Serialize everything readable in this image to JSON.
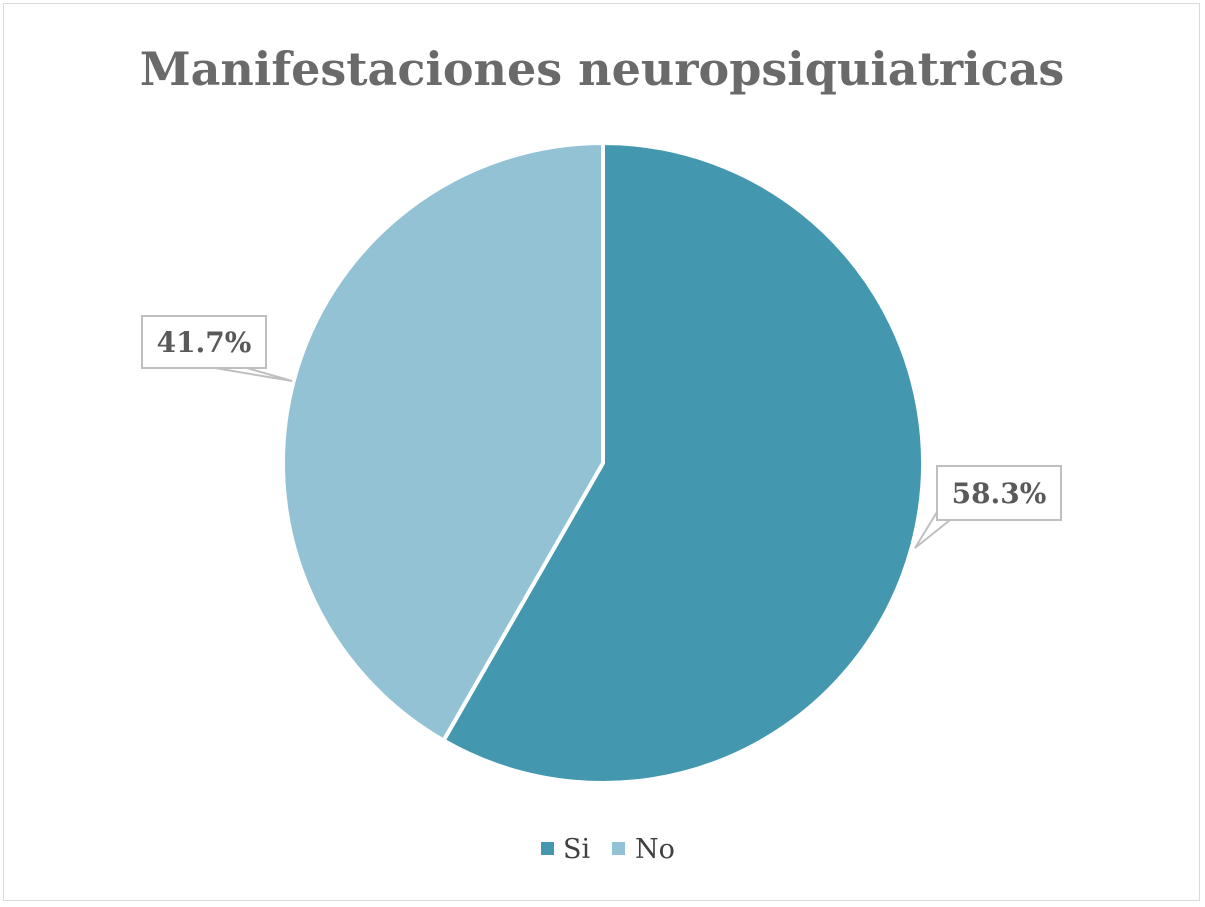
{
  "chart_data": {
    "type": "pie",
    "title": "Manifestaciones neuropsiquiatricas",
    "categories": [
      "Si",
      "No"
    ],
    "values": [
      58.3,
      41.7
    ],
    "data_labels": [
      "58.3%",
      "41.7%"
    ],
    "colors": [
      "#4398b0",
      "#93c2d5"
    ],
    "start_angle_deg": 0,
    "direction": "clockwise",
    "legend_position": "bottom"
  }
}
